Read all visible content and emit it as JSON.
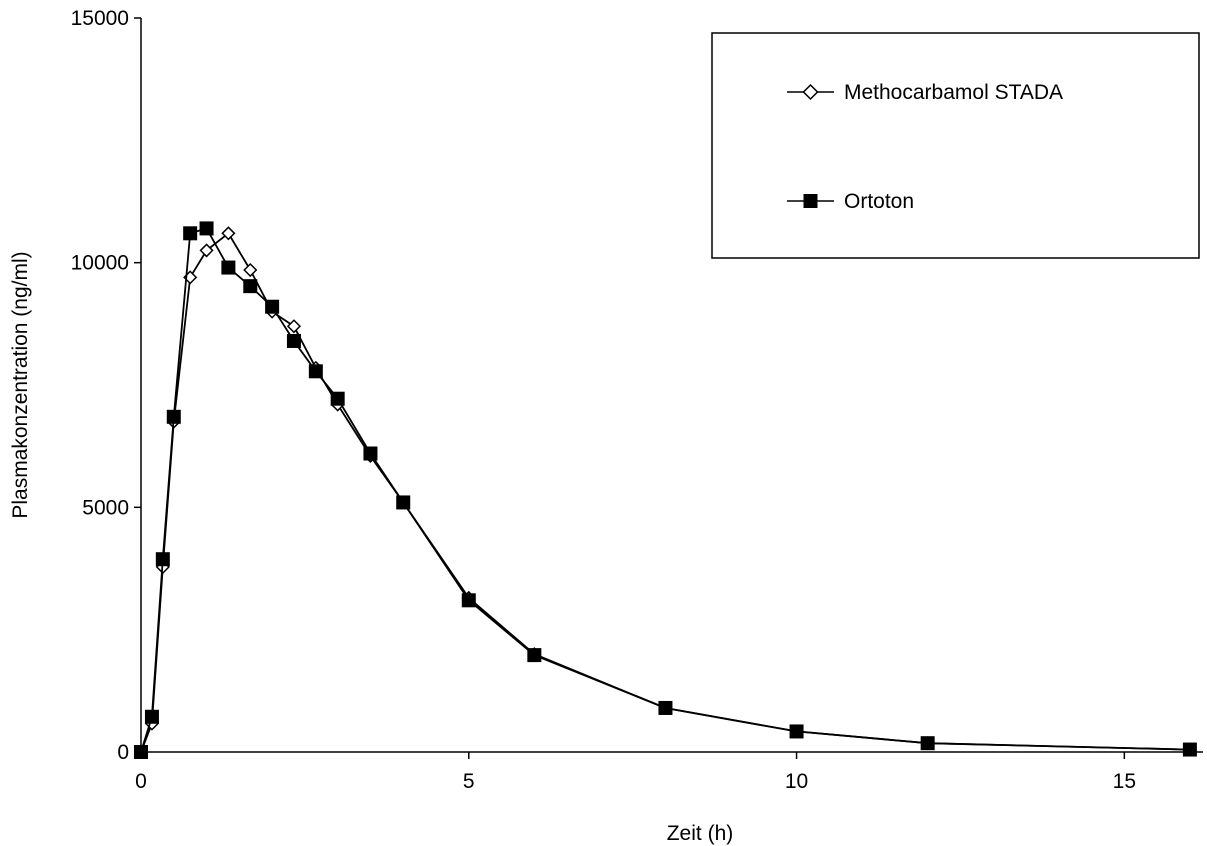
{
  "chart_data": {
    "type": "line",
    "title": "",
    "xlabel": "Zeit (h)",
    "ylabel": "Plasmakonzentration (ng/ml)",
    "xlim": [
      0,
      16.2
    ],
    "ylim": [
      0,
      15000
    ],
    "x_ticks": [
      0,
      5,
      10,
      15
    ],
    "x_tick_labels": [
      "0",
      "5",
      "10",
      "15"
    ],
    "y_ticks": [
      0,
      5000,
      10000,
      15000
    ],
    "y_tick_labels": [
      "0",
      "5000",
      "10000",
      "15000"
    ],
    "grid": false,
    "legend_position": "top-right",
    "series": [
      {
        "name": "Methocarbamol STADA",
        "marker": "diamond-open",
        "color": "#000000",
        "x": [
          0,
          0.167,
          0.333,
          0.5,
          0.75,
          1.0,
          1.333,
          1.667,
          2.0,
          2.333,
          2.667,
          3.0,
          3.5,
          4.0,
          5.0,
          6.0,
          8.0,
          10.0,
          12.0,
          16.0
        ],
        "y": [
          0,
          580,
          3780,
          6750,
          9700,
          10250,
          10600,
          9850,
          9000,
          8700,
          7850,
          7100,
          6050,
          5100,
          3150,
          2000,
          900,
          420,
          180,
          50
        ]
      },
      {
        "name": "Ortoton",
        "marker": "square-filled",
        "color": "#000000",
        "x": [
          0,
          0.167,
          0.333,
          0.5,
          0.75,
          1.0,
          1.333,
          1.667,
          2.0,
          2.333,
          2.667,
          3.0,
          3.5,
          4.0,
          5.0,
          6.0,
          8.0,
          10.0,
          12.0,
          16.0
        ],
        "y": [
          0,
          720,
          3940,
          6850,
          10600,
          10700,
          9900,
          9520,
          9100,
          8400,
          7780,
          7220,
          6100,
          5100,
          3100,
          1980,
          900,
          420,
          180,
          50
        ]
      }
    ]
  }
}
